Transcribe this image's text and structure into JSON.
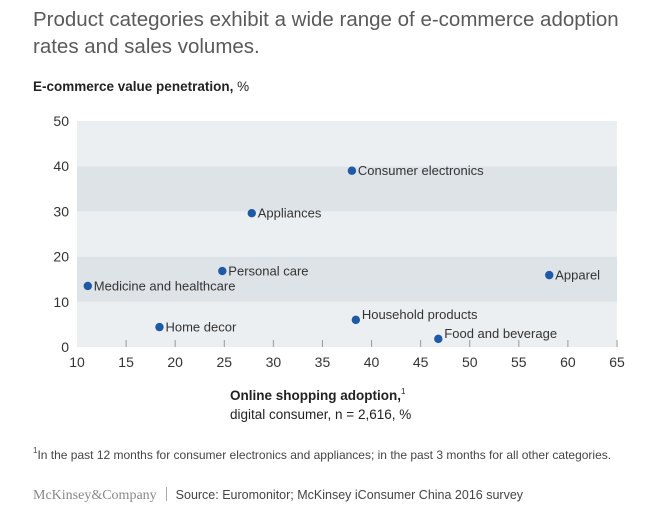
{
  "chart_data": {
    "type": "scatter",
    "title": "Product categories exhibit a wide range of e-commerce adoption rates and sales volumes.",
    "ylabel_bold": "E-commerce value penetration,",
    "ylabel_unit": "%",
    "xlabel_bold": "Online shopping adoption,",
    "xlabel_sup": "1",
    "xlabel_sub": "digital consumer, n = 2,616, %",
    "xlim": [
      10,
      65
    ],
    "ylim": [
      0,
      50
    ],
    "xticks": [
      10,
      15,
      20,
      25,
      30,
      35,
      40,
      45,
      50,
      55,
      60,
      65
    ],
    "yticks": [
      0,
      10,
      20,
      30,
      40,
      50
    ],
    "grid": "alternating horizontal bands",
    "band_colors": {
      "light": "#ECEFF1",
      "dark": "#DDE3E7"
    },
    "point_color": "#1F5AA6",
    "points": [
      {
        "label": "Consumer electronics",
        "x": 38,
        "y": 39
      },
      {
        "label": "Appliances",
        "x": 27.8,
        "y": 29.6
      },
      {
        "label": "Personal care",
        "x": 24.8,
        "y": 16.8
      },
      {
        "label": "Medicine and healthcare",
        "x": 11.1,
        "y": 13.5
      },
      {
        "label": "Apparel",
        "x": 58.1,
        "y": 15.9
      },
      {
        "label": "Household products",
        "x": 38.4,
        "y": 6.0
      },
      {
        "label": "Home decor",
        "x": 18.4,
        "y": 4.4
      },
      {
        "label": "Food and beverage",
        "x": 46.8,
        "y": 1.8
      }
    ]
  },
  "footnote": "In the past 12 months for consumer electronics and appliances; in the past 3 months for all other categories.",
  "footnote_marker": "1",
  "brand": "McKinsey&Company",
  "source": "Source: Euromonitor; McKinsey iConsumer China 2016 survey"
}
